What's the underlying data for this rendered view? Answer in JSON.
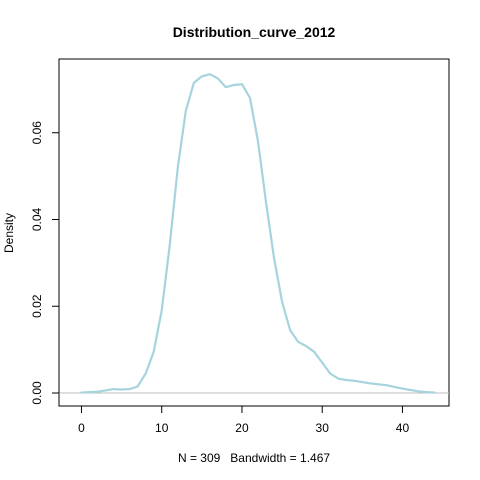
{
  "chart_data": {
    "type": "line",
    "title": "Distribution_curve_2012",
    "xlabel": "N = 309   Bandwidth = 1.467",
    "ylabel": "Density",
    "xlim": [
      -2.8,
      45.8
    ],
    "ylim": [
      -0.003,
      0.077
    ],
    "x_ticks": [
      0,
      10,
      20,
      30,
      40
    ],
    "y_ticks": [
      0.0,
      0.02,
      0.04,
      0.06
    ],
    "x_tick_labels": [
      "0",
      "10",
      "20",
      "30",
      "40"
    ],
    "y_tick_labels": [
      "0.00",
      "0.02",
      "0.04",
      "0.06"
    ],
    "grid": false,
    "baseline": 0,
    "colors": {
      "curve": "#a6d4de",
      "baseline": "#bebebe",
      "axes": "#000000"
    },
    "series": [
      {
        "x": [
          0,
          1,
          2,
          3,
          4,
          5,
          6,
          7,
          8,
          9,
          10,
          11,
          12,
          13,
          14,
          15,
          16,
          17,
          18,
          19,
          20,
          21,
          22,
          23,
          24,
          25,
          26,
          27,
          28,
          29,
          30,
          31,
          32,
          33,
          34,
          35,
          36,
          37,
          38,
          39,
          40,
          41,
          42,
          43,
          44
        ],
        "y": [
          0.0001,
          0.0002,
          0.0003,
          0.0006,
          0.0009,
          0.0008,
          0.0009,
          0.0015,
          0.0045,
          0.0095,
          0.019,
          0.034,
          0.052,
          0.065,
          0.0715,
          0.073,
          0.0735,
          0.0725,
          0.0705,
          0.071,
          0.0712,
          0.068,
          0.058,
          0.044,
          0.031,
          0.021,
          0.0145,
          0.0118,
          0.0108,
          0.0095,
          0.007,
          0.0045,
          0.0033,
          0.003,
          0.0028,
          0.0025,
          0.0022,
          0.002,
          0.0018,
          0.0014,
          0.001,
          0.0007,
          0.0004,
          0.0002,
          0.0001
        ]
      }
    ]
  }
}
